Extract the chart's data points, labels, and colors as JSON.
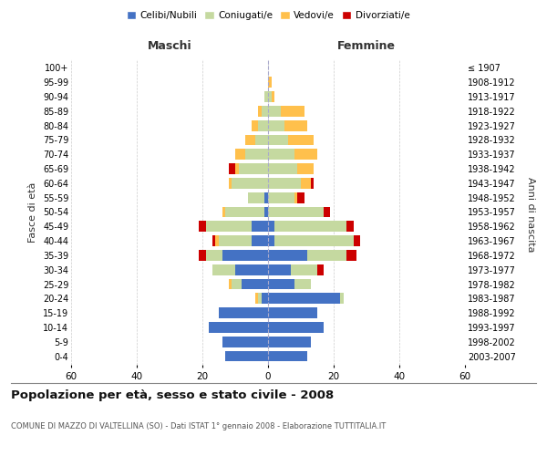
{
  "age_groups": [
    "0-4",
    "5-9",
    "10-14",
    "15-19",
    "20-24",
    "25-29",
    "30-34",
    "35-39",
    "40-44",
    "45-49",
    "50-54",
    "55-59",
    "60-64",
    "65-69",
    "70-74",
    "75-79",
    "80-84",
    "85-89",
    "90-94",
    "95-99",
    "100+"
  ],
  "birth_years": [
    "2003-2007",
    "1998-2002",
    "1993-1997",
    "1988-1992",
    "1983-1987",
    "1978-1982",
    "1973-1977",
    "1968-1972",
    "1963-1967",
    "1958-1962",
    "1953-1957",
    "1948-1952",
    "1943-1947",
    "1938-1942",
    "1933-1937",
    "1928-1932",
    "1923-1927",
    "1918-1922",
    "1913-1917",
    "1908-1912",
    "≤ 1907"
  ],
  "maschi": {
    "celibi": [
      13,
      14,
      18,
      15,
      2,
      8,
      10,
      14,
      5,
      5,
      1,
      1,
      0,
      0,
      0,
      0,
      0,
      0,
      0,
      0,
      0
    ],
    "coniugati": [
      0,
      0,
      0,
      0,
      1,
      3,
      7,
      5,
      10,
      14,
      12,
      5,
      11,
      9,
      7,
      4,
      3,
      2,
      1,
      0,
      0
    ],
    "vedovi": [
      0,
      0,
      0,
      0,
      1,
      1,
      0,
      0,
      1,
      0,
      1,
      0,
      1,
      1,
      3,
      3,
      2,
      1,
      0,
      0,
      0
    ],
    "divorziati": [
      0,
      0,
      0,
      0,
      0,
      0,
      0,
      2,
      1,
      2,
      0,
      0,
      0,
      2,
      0,
      0,
      0,
      0,
      0,
      0,
      0
    ]
  },
  "femmine": {
    "nubili": [
      12,
      13,
      17,
      15,
      22,
      8,
      7,
      12,
      2,
      2,
      0,
      0,
      0,
      0,
      0,
      0,
      0,
      0,
      0,
      0,
      0
    ],
    "coniugate": [
      0,
      0,
      0,
      0,
      1,
      5,
      8,
      12,
      24,
      22,
      17,
      8,
      10,
      9,
      8,
      6,
      5,
      4,
      1,
      0,
      0
    ],
    "vedove": [
      0,
      0,
      0,
      0,
      0,
      0,
      0,
      0,
      0,
      0,
      0,
      1,
      3,
      5,
      7,
      8,
      7,
      7,
      1,
      1,
      0
    ],
    "divorziate": [
      0,
      0,
      0,
      0,
      0,
      0,
      2,
      3,
      2,
      2,
      2,
      2,
      1,
      0,
      0,
      0,
      0,
      0,
      0,
      0,
      0
    ]
  },
  "colors": {
    "celibi": "#4472c4",
    "coniugati": "#c5d9a0",
    "vedovi": "#ffc04c",
    "divorziati": "#cc0000"
  },
  "title": "Popolazione per età, sesso e stato civile - 2008",
  "subtitle": "COMUNE DI MAZZO DI VALTELLINA (SO) - Dati ISTAT 1° gennaio 2008 - Elaborazione TUTTITALIA.IT",
  "xlabel_left": "Maschi",
  "xlabel_right": "Femmine",
  "ylabel_left": "Fasce di età",
  "ylabel_right": "Anni di nascita",
  "xlim": 60,
  "bg_color": "#ffffff",
  "grid_color": "#cccccc",
  "bar_height": 0.75
}
